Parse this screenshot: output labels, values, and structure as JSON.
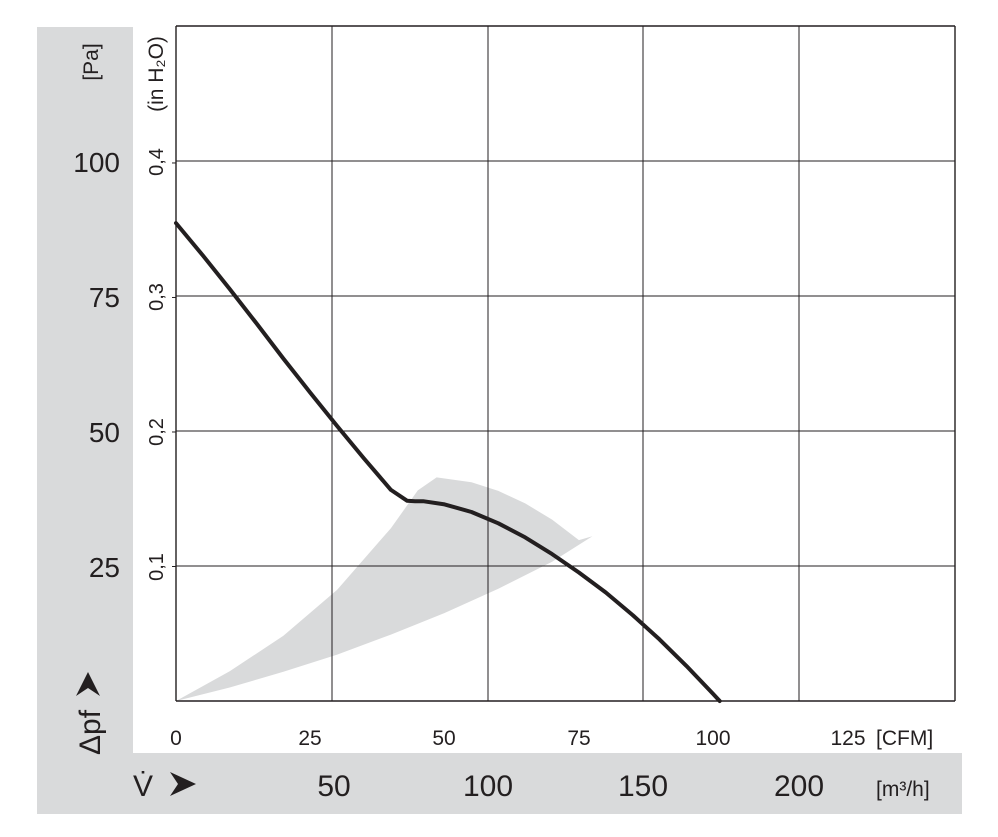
{
  "chart_data": {
    "type": "line",
    "title": "",
    "x_axes": {
      "cfm": {
        "unit_label": "[CFM]",
        "ticks": [
          "0",
          "25",
          "50",
          "75",
          "100",
          "125"
        ],
        "tick_values": [
          0,
          25,
          50,
          75,
          100,
          125
        ],
        "range": [
          0,
          145
        ]
      },
      "m3h": {
        "unit_label": "[m³/h]",
        "symbol": "V̇",
        "ticks": [
          "50",
          "100",
          "150",
          "200"
        ],
        "tick_values": [
          50,
          100,
          150,
          200
        ]
      }
    },
    "y_axes": {
      "pa": {
        "unit_label": "[Pa]",
        "symbol": "Δpf",
        "ticks": [
          "25",
          "50",
          "75",
          "100"
        ],
        "tick_values": [
          25,
          50,
          75,
          100
        ],
        "range": [
          0,
          125
        ]
      },
      "inh2o": {
        "unit_label": "(in H₂O)",
        "ticks": [
          "0,1",
          "0,2",
          "0,3",
          "0,4"
        ],
        "tick_values": [
          0.1,
          0.2,
          0.3,
          0.4
        ]
      }
    },
    "grid": true,
    "series": [
      {
        "x": [
          0,
          5,
          10,
          15,
          20,
          25,
          30,
          35,
          40,
          43,
          44.5,
          46,
          50,
          55,
          60,
          65,
          70,
          75,
          80,
          85,
          90,
          95,
          100,
          105,
          107
        ],
        "y": [
          88.5,
          82.5,
          76.3,
          69.9,
          63.4,
          57.1,
          50.9,
          44.9,
          39.1,
          37.1,
          37.0,
          37.0,
          36.4,
          35.0,
          32.9,
          30.3,
          27.2,
          23.8,
          20.1,
          15.9,
          11.4,
          6.5,
          1.3,
          -4.1,
          -6.4
        ]
      }
    ],
    "operating_region": {
      "color": "#d9dadb",
      "upper": {
        "x": [
          0,
          10,
          20,
          30,
          40,
          45,
          48.5
        ],
        "y": [
          0,
          5.5,
          12.1,
          20.6,
          32.0,
          39.0,
          41.4
        ]
      },
      "far": {
        "x": [
          48.5,
          55,
          60,
          65,
          70,
          75,
          77.5
        ],
        "y": [
          41.4,
          40.5,
          38.9,
          36.6,
          33.6,
          29.8,
          30.5
        ]
      },
      "lower": {
        "x": [
          77.5,
          70,
          60,
          50,
          40,
          30,
          20,
          10,
          0
        ],
        "y": [
          30.5,
          25.8,
          20.8,
          16.3,
          12.3,
          8.6,
          5.4,
          2.5,
          0
        ]
      }
    },
    "colors": {
      "curve": "#231f20",
      "grid": "#231f20",
      "band": "#d9dadb"
    }
  }
}
